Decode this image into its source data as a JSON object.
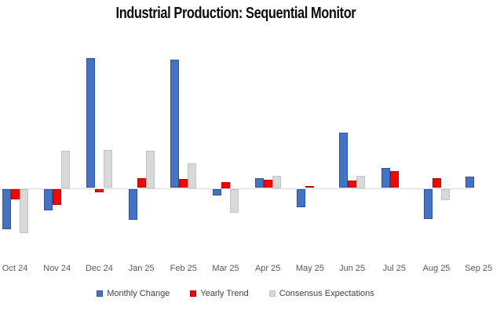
{
  "title": "Industrial Production: Sequential Monitor",
  "colors": {
    "monthly": "#4472c4",
    "monthly_border": "#2e5597",
    "yearly": "#ff0000",
    "yearly_border": "#c00000",
    "consensus": "#d9d9d9",
    "consensus_border": "#c3c3c3",
    "baseline": "#d9d9d9",
    "axis_label_text": "#595959",
    "legend_text": "#404040"
  },
  "chart_data": {
    "type": "bar",
    "title": "Industrial Production: Sequential Monitor",
    "xlabel": "",
    "ylabel": "",
    "grid": false,
    "y_axis_visible": false,
    "legend_position": "bottom",
    "ylim": [
      -0.8,
      2.2
    ],
    "categories": [
      "Oct 24",
      "Nov 24",
      "Dec 24",
      "Jan 25",
      "Feb 25",
      "Mar 25",
      "Apr 25",
      "May 25",
      "Jun 25",
      "Jul 25",
      "Aug 25",
      "Sep 25"
    ],
    "series": [
      {
        "name": "Monthly Change",
        "color_key": "monthly",
        "values": [
          -0.64,
          -0.34,
          2.07,
          -0.49,
          2.04,
          -0.1,
          0.16,
          -0.29,
          0.88,
          0.32,
          -0.48,
          0.18
        ]
      },
      {
        "name": "Yearly Trend",
        "color_key": "yearly",
        "values": [
          -0.17,
          -0.26,
          -0.05,
          0.16,
          0.14,
          0.1,
          0.13,
          0.03,
          0.12,
          0.27,
          0.16,
          null
        ]
      },
      {
        "name": "Consensus Expectations",
        "color_key": "consensus",
        "values": [
          -0.7,
          0.6,
          0.61,
          0.6,
          0.4,
          -0.38,
          0.2,
          0.0,
          0.2,
          0.0,
          -0.18,
          null
        ]
      }
    ]
  }
}
